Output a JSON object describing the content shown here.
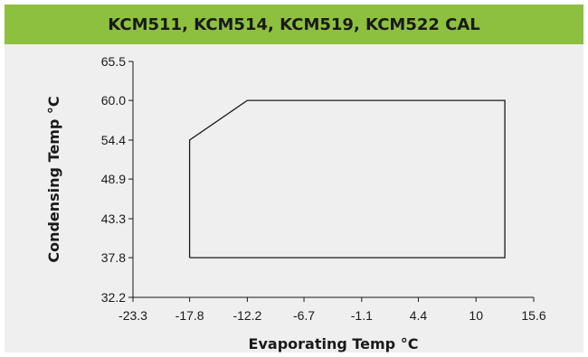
{
  "header": {
    "title": "KCM511, KCM514, KCM519, KCM522 CAL"
  },
  "colors": {
    "header_bg": "#8dc03f",
    "plot_bg": "#efefef",
    "line": "#1a1a1a"
  },
  "chart_data": {
    "type": "line",
    "title": "KCM511, KCM514, KCM519, KCM522 CAL",
    "xlabel": "Evaporating Temp °C",
    "ylabel": "Condensing Temp °C",
    "xlim": [
      -23.3,
      15.6
    ],
    "ylim": [
      32.2,
      65.5
    ],
    "x_ticks": [
      "-23.3",
      "-17.8",
      "-12.2",
      "-6.7",
      "-1.1",
      "4.4",
      "10",
      "15.6"
    ],
    "y_ticks": [
      "32.2",
      "37.8",
      "43.3",
      "48.9",
      "54.4",
      "60.0",
      "65.5"
    ],
    "grid": false,
    "legend": "none",
    "series": [
      {
        "x": [
          -17.8,
          -17.8,
          -12.2,
          12.8,
          12.8,
          -17.8
        ],
        "y": [
          37.8,
          54.4,
          60.0,
          60.0,
          37.8,
          37.8
        ]
      }
    ]
  }
}
